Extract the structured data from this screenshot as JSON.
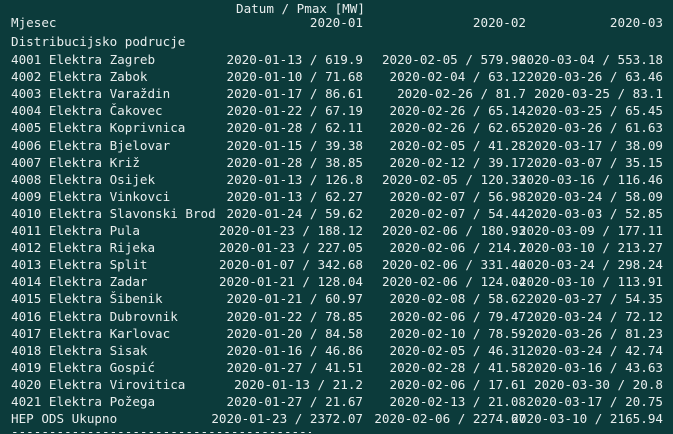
{
  "header": {
    "title": "Datum / Pmax [MW]",
    "row_label": "Mjesec",
    "months": [
      "2020-01",
      "2020-02",
      "2020-03"
    ],
    "index_name": "Distribucijsko podrucje"
  },
  "rows": [
    {
      "name": "4001 Elektra Zagreb",
      "c1": "2020-01-13 / 619.9",
      "c2": "2020-02-05 / 579.96",
      "c3": "2020-03-04 / 553.18"
    },
    {
      "name": "4002 Elektra Zabok",
      "c1": "2020-01-10 / 71.68",
      "c2": "2020-02-04 / 63.12",
      "c3": "2020-03-26 / 63.46"
    },
    {
      "name": "4003 Elektra Varaždin",
      "c1": "2020-01-17 / 86.61",
      "c2": "2020-02-26 / 81.7",
      "c3": "2020-03-25 / 83.1"
    },
    {
      "name": "4004 Elektra Čakovec",
      "c1": "2020-01-22 / 67.19",
      "c2": "2020-02-26 / 65.14",
      "c3": "2020-03-25 / 65.45"
    },
    {
      "name": "4005 Elektra Koprivnica",
      "c1": "2020-01-28 / 62.11",
      "c2": "2020-02-26 / 62.65",
      "c3": "2020-03-26 / 61.63"
    },
    {
      "name": "4006 Elektra Bjelovar",
      "c1": "2020-01-15 / 39.38",
      "c2": "2020-02-05 / 41.28",
      "c3": "2020-03-17 / 38.09"
    },
    {
      "name": "4007 Elektra Križ",
      "c1": "2020-01-28 / 38.85",
      "c2": "2020-02-12 / 39.17",
      "c3": "2020-03-07 / 35.15"
    },
    {
      "name": "4008 Elektra Osijek",
      "c1": "2020-01-13 / 126.8",
      "c2": "2020-02-05 / 120.33",
      "c3": "2020-03-16 / 116.46"
    },
    {
      "name": "4009 Elektra Vinkovci",
      "c1": "2020-01-13 / 62.27",
      "c2": "2020-02-07 / 56.98",
      "c3": "2020-03-24 / 58.09"
    },
    {
      "name": "4010 Elektra Slavonski Brod",
      "c1": "2020-01-24 / 59.62",
      "c2": "2020-02-07 / 54.44",
      "c3": "2020-03-03 / 52.85"
    },
    {
      "name": "4011 Elektra Pula",
      "c1": "2020-01-23 / 188.12",
      "c2": "2020-02-06 / 180.93",
      "c3": "2020-03-09 / 177.11"
    },
    {
      "name": "4012 Elektra Rijeka",
      "c1": "2020-01-23 / 227.05",
      "c2": "2020-02-06 / 214.7",
      "c3": "2020-03-10 / 213.27"
    },
    {
      "name": "4013 Elektra Split",
      "c1": "2020-01-07 / 342.68",
      "c2": "2020-02-06 / 331.46",
      "c3": "2020-03-24 / 298.24"
    },
    {
      "name": "4014 Elektra Zadar",
      "c1": "2020-01-21 / 128.04",
      "c2": "2020-02-06 / 124.04",
      "c3": "2020-03-10 / 113.91"
    },
    {
      "name": "4015 Elektra Šibenik",
      "c1": "2020-01-21 / 60.97",
      "c2": "2020-02-08 / 58.62",
      "c3": "2020-03-27 / 54.35"
    },
    {
      "name": "4016 Elektra Dubrovnik",
      "c1": "2020-01-22 / 78.85",
      "c2": "2020-02-06 / 79.47",
      "c3": "2020-03-24 / 72.12"
    },
    {
      "name": "4017 Elektra Karlovac",
      "c1": "2020-01-20 / 84.58",
      "c2": "2020-02-10 / 78.59",
      "c3": "2020-03-26 / 81.23"
    },
    {
      "name": "4018 Elektra Sisak",
      "c1": "2020-01-16 / 46.86",
      "c2": "2020-02-05 / 46.31",
      "c3": "2020-03-24 / 42.74"
    },
    {
      "name": "4019 Elektra Gospić",
      "c1": "2020-01-27 / 41.51",
      "c2": "2020-02-28 / 41.58",
      "c3": "2020-03-16 / 43.63"
    },
    {
      "name": "4020 Elektra Virovitica",
      "c1": "2020-01-13 / 21.2",
      "c2": "2020-02-06 / 17.61",
      "c3": "2020-03-30 / 20.8"
    },
    {
      "name": "4021 Elektra Požega",
      "c1": "2020-01-27 / 21.67",
      "c2": "2020-02-13 / 21.08",
      "c3": "2020-03-17 / 20.75"
    },
    {
      "name": "HEP ODS Ukupno",
      "c1": "2020-01-23 / 2372.07",
      "c2": "2020-02-06 / 2274.67",
      "c3": "2020-03-10 / 2165.94"
    }
  ],
  "footer": {
    "separator": "----------------------------------------"
  },
  "colors": {
    "background": "#0c3b3b",
    "text": "#e8eeee"
  }
}
